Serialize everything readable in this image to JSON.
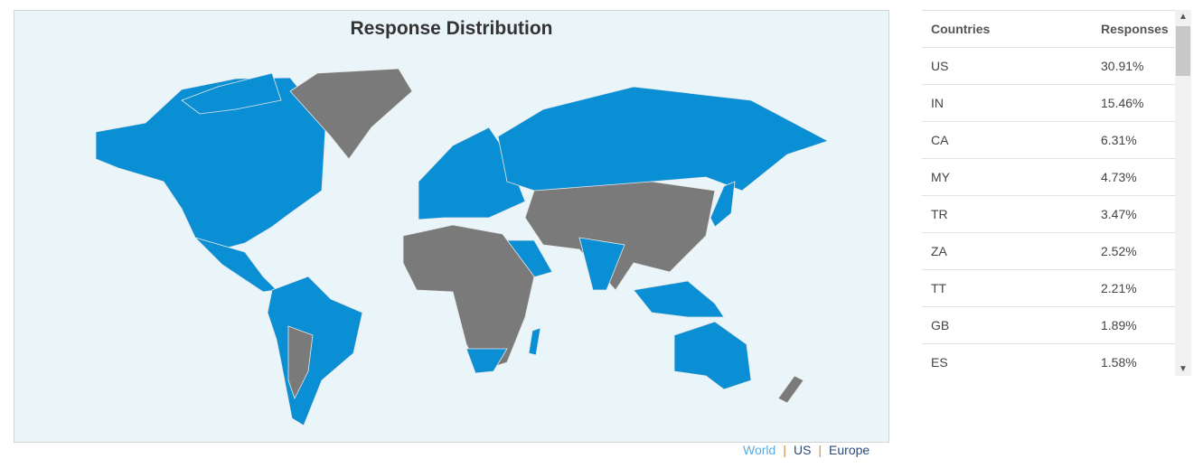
{
  "map": {
    "title": "Response Distribution",
    "colors": {
      "responded": "#0a8fd4",
      "none": "#7a7a7a",
      "background": "#eaf5fa"
    }
  },
  "links": {
    "world": "World",
    "us": "US",
    "europe": "Europe",
    "active": "World"
  },
  "table": {
    "headers": [
      "Countries",
      "Responses"
    ],
    "rows": [
      {
        "country": "US",
        "value": "30.91%"
      },
      {
        "country": "IN",
        "value": "15.46%"
      },
      {
        "country": "CA",
        "value": "6.31%"
      },
      {
        "country": "MY",
        "value": "4.73%"
      },
      {
        "country": "TR",
        "value": "3.47%"
      },
      {
        "country": "ZA",
        "value": "2.52%"
      },
      {
        "country": "TT",
        "value": "2.21%"
      },
      {
        "country": "GB",
        "value": "1.89%"
      },
      {
        "country": "ES",
        "value": "1.58%"
      }
    ]
  },
  "scrollbar": {
    "up": "chevron-up-icon",
    "down": "chevron-down-icon"
  }
}
